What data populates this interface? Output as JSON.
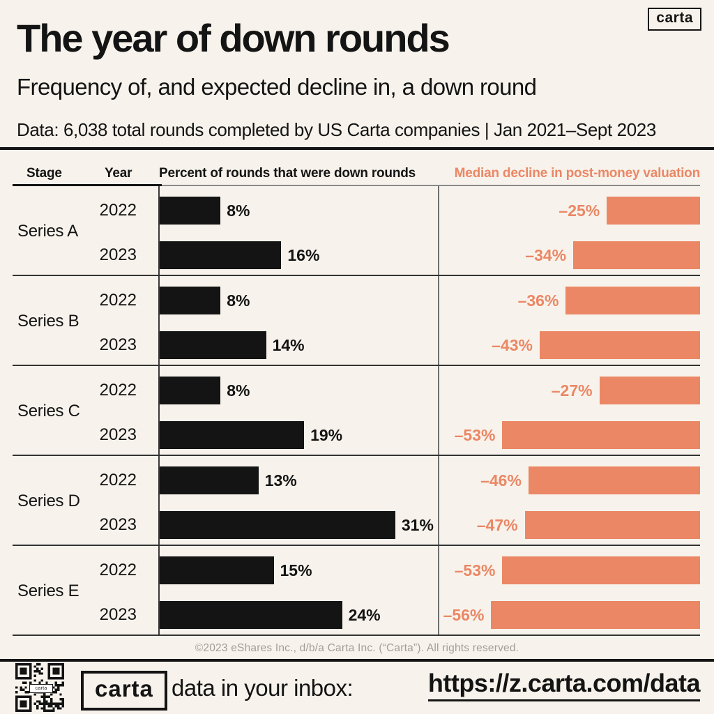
{
  "colors": {
    "background": "#F7F3EC",
    "ink": "#141414",
    "salmon": "#EB8765",
    "grid_line": "#333333",
    "muted_text": "#A29E96"
  },
  "top_logo": {
    "label": "carta"
  },
  "header": {
    "title": "The year of down rounds",
    "subtitle": "Frequency of, and expected decline in, a down round",
    "data_note": "Data: 6,038 total rounds completed by US Carta companies | Jan 2021–Sept 2023"
  },
  "table_headers": {
    "stage": "Stage",
    "year": "Year",
    "left_metric": "Percent of rounds that were down rounds",
    "right_metric": "Median decline in post-money valuation"
  },
  "chart_data": {
    "type": "bar",
    "orientation": "horizontal",
    "title": "The year of down rounds",
    "panels": [
      {
        "name": "Percent of rounds that were down rounds",
        "unit": "%",
        "color": "#141414",
        "align": "left",
        "value_range": [
          0,
          31
        ]
      },
      {
        "name": "Median decline in post-money valuation",
        "unit": "%",
        "color": "#EB8765",
        "align": "right",
        "value_range": [
          -56,
          -25
        ]
      }
    ],
    "groups": [
      {
        "stage": "Series A",
        "rows": [
          {
            "year": "2022",
            "percent_down_rounds": 8,
            "percent_label": "8%",
            "median_decline": -25,
            "decline_label": "–25%"
          },
          {
            "year": "2023",
            "percent_down_rounds": 16,
            "percent_label": "16%",
            "median_decline": -34,
            "decline_label": "–34%"
          }
        ]
      },
      {
        "stage": "Series B",
        "rows": [
          {
            "year": "2022",
            "percent_down_rounds": 8,
            "percent_label": "8%",
            "median_decline": -36,
            "decline_label": "–36%"
          },
          {
            "year": "2023",
            "percent_down_rounds": 14,
            "percent_label": "14%",
            "median_decline": -43,
            "decline_label": "–43%"
          }
        ]
      },
      {
        "stage": "Series C",
        "rows": [
          {
            "year": "2022",
            "percent_down_rounds": 8,
            "percent_label": "8%",
            "median_decline": -27,
            "decline_label": "–27%"
          },
          {
            "year": "2023",
            "percent_down_rounds": 19,
            "percent_label": "19%",
            "median_decline": -53,
            "decline_label": "–53%"
          }
        ]
      },
      {
        "stage": "Series D",
        "rows": [
          {
            "year": "2022",
            "percent_down_rounds": 13,
            "percent_label": "13%",
            "median_decline": -46,
            "decline_label": "–46%"
          },
          {
            "year": "2023",
            "percent_down_rounds": 31,
            "percent_label": "31%",
            "median_decline": -47,
            "decline_label": "–47%"
          }
        ]
      },
      {
        "stage": "Series E",
        "rows": [
          {
            "year": "2022",
            "percent_down_rounds": 15,
            "percent_label": "15%",
            "median_decline": -53,
            "decline_label": "–53%"
          },
          {
            "year": "2023",
            "percent_down_rounds": 24,
            "percent_label": "24%",
            "median_decline": -56,
            "decline_label": "–56%"
          }
        ]
      }
    ]
  },
  "footer": {
    "copyright": "©2023 eShares Inc., d/b/a Carta Inc. (“Carta”). All rights reserved."
  },
  "bottom_bar": {
    "qr_label": "carta",
    "logo": "carta",
    "text": "data in your inbox:",
    "url": "https://z.carta.com/data"
  }
}
